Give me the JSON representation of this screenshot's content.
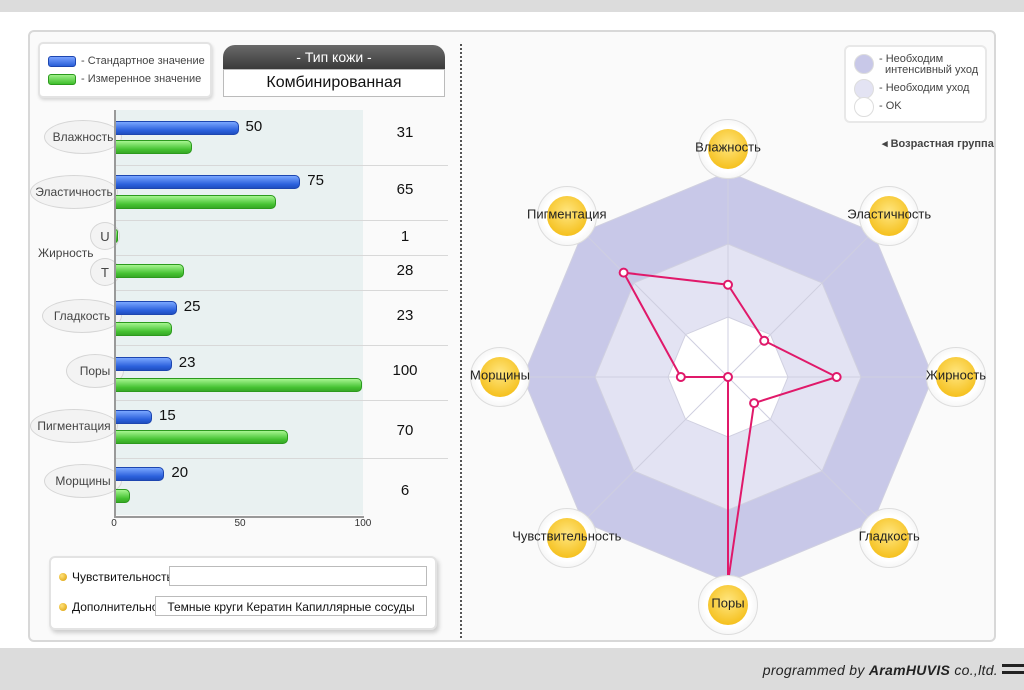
{
  "legend_left": {
    "standard": "- Стандартное значение",
    "measured": "- Измеренное значение"
  },
  "skin_type": {
    "title": "- Тип кожи -",
    "value": "Комбинированная"
  },
  "axis_ticks": [
    "0",
    "50",
    "100"
  ],
  "rows": [
    {
      "label": "Влажность",
      "standard": 50,
      "measured": 31,
      "standard_label": "50",
      "measured_label": "31"
    },
    {
      "label": "Эластичность",
      "standard": 75,
      "measured": 65,
      "standard_label": "75",
      "measured_label": "65"
    },
    {
      "label": "Жирность",
      "sub": [
        {
          "label": "U",
          "measured": 1,
          "measured_label": "1"
        },
        {
          "label": "T",
          "measured": 28,
          "measured_label": "28"
        }
      ]
    },
    {
      "label": "Гладкость",
      "standard": 25,
      "measured": 23,
      "standard_label": "25",
      "measured_label": "23"
    },
    {
      "label": "Поры",
      "standard": 23,
      "measured": 100,
      "standard_label": "23",
      "measured_label": "100"
    },
    {
      "label": "Пигментация",
      "standard": 15,
      "measured": 70,
      "standard_label": "15",
      "measured_label": "70"
    },
    {
      "label": "Морщины",
      "standard": 20,
      "measured": 6,
      "standard_label": "20",
      "measured_label": "6"
    }
  ],
  "extra": {
    "sensitivity_label": "Чувствительность",
    "sensitivity_value": "",
    "additional_label": "Дополнительно",
    "additional_value": "Темные круги Кератин Капиллярные сосуды"
  },
  "legend_right": {
    "intensive_line1": "- Необходим",
    "intensive_line2": "интенсивный уход",
    "care": "- Необходим уход",
    "ok": "- OK"
  },
  "age_group": "◂ Возрастная группа",
  "radar": {
    "axes": [
      "Влажность",
      "Эластичность",
      "Жирность",
      "Гладкость",
      "Поры",
      "Чувствительность",
      "Морщины",
      "Пигментация"
    ],
    "values": [
      0.45,
      0.25,
      0.53,
      0.18,
      1.0,
      0.0,
      0.23,
      0.72
    ],
    "colors": {
      "intensive": "#c8c8e8",
      "care": "#e3e3f3",
      "ok": "#ffffff",
      "line": "#e0196a"
    }
  },
  "credit": {
    "prefix": "programmed by ",
    "brand": "AramHUVIS",
    "suffix": " co.,ltd."
  }
}
